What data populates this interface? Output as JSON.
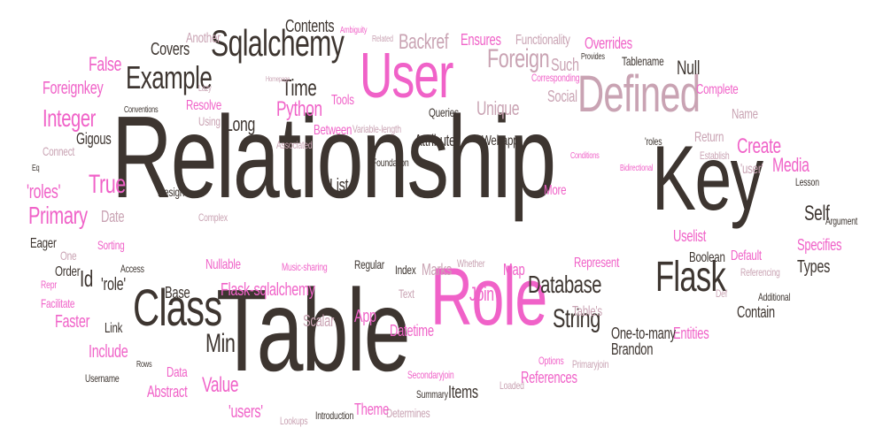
{
  "palette": {
    "dark": "#3d3530",
    "pink": "#f062c8",
    "mauve": "#c9a3b3",
    "light_pink": "#f4a8d8"
  },
  "words": [
    {
      "text": "Relationship",
      "color": "dark"
    },
    {
      "text": "Table",
      "color": "dark"
    },
    {
      "text": "Key",
      "color": "dark"
    },
    {
      "text": "Role",
      "color": "pink"
    },
    {
      "text": "User",
      "color": "pink"
    },
    {
      "text": "Defined",
      "color": "mauve"
    },
    {
      "text": "Class",
      "color": "dark"
    },
    {
      "text": "Flask",
      "color": "dark"
    },
    {
      "text": "Sqlalchemy",
      "color": "dark"
    },
    {
      "text": "Example",
      "color": "dark"
    },
    {
      "text": "Foreign",
      "color": "mauve"
    },
    {
      "text": "Database",
      "color": "dark"
    },
    {
      "text": "String",
      "color": "dark"
    },
    {
      "text": "Integer",
      "color": "pink"
    },
    {
      "text": "Primary",
      "color": "pink"
    },
    {
      "text": "True",
      "color": "pink"
    },
    {
      "text": "Time",
      "color": "dark"
    },
    {
      "text": "Python",
      "color": "pink"
    },
    {
      "text": "Unique",
      "color": "mauve"
    },
    {
      "text": "Backref",
      "color": "mauve"
    },
    {
      "text": "Contents",
      "color": "dark"
    },
    {
      "text": "Covers",
      "color": "dark"
    },
    {
      "text": "Create",
      "color": "pink"
    },
    {
      "text": "Media",
      "color": "pink"
    },
    {
      "text": "Self",
      "color": "dark"
    },
    {
      "text": "Flask-sqlalchemy",
      "color": "pink"
    },
    {
      "text": "Min",
      "color": "dark"
    },
    {
      "text": "Join",
      "color": "pink"
    },
    {
      "text": "Value",
      "color": "pink"
    },
    {
      "text": "Id",
      "color": "dark"
    },
    {
      "text": "'role'",
      "color": "dark"
    },
    {
      "text": "'roles'",
      "color": "pink"
    },
    {
      "text": "Foreignkey",
      "color": "pink"
    },
    {
      "text": "False",
      "color": "pink"
    },
    {
      "text": "Null",
      "color": "dark"
    },
    {
      "text": "Tablename",
      "color": "dark"
    },
    {
      "text": "Social",
      "color": "mauve"
    },
    {
      "text": "Such",
      "color": "mauve"
    },
    {
      "text": "Ensures",
      "color": "pink"
    },
    {
      "text": "Functionality",
      "color": "mauve"
    },
    {
      "text": "Overrides",
      "color": "pink"
    },
    {
      "text": "Provides",
      "color": "dark"
    },
    {
      "text": "Corresponding",
      "color": "pink"
    },
    {
      "text": "Complete",
      "color": "pink"
    },
    {
      "text": "Name",
      "color": "mauve"
    },
    {
      "text": "Return",
      "color": "mauve"
    },
    {
      "text": "Establish",
      "color": "mauve"
    },
    {
      "text": "'user'",
      "color": "mauve"
    },
    {
      "text": "Lesson",
      "color": "dark"
    },
    {
      "text": "Argument",
      "color": "dark"
    },
    {
      "text": "Specifies",
      "color": "pink"
    },
    {
      "text": "Types",
      "color": "dark"
    },
    {
      "text": "Default",
      "color": "pink"
    },
    {
      "text": "Boolean",
      "color": "dark"
    },
    {
      "text": "Uselist",
      "color": "pink"
    },
    {
      "text": "Referencing",
      "color": "mauve"
    },
    {
      "text": "Additional",
      "color": "dark"
    },
    {
      "text": "Contain",
      "color": "dark"
    },
    {
      "text": "Def",
      "color": "mauve"
    },
    {
      "text": "Represent",
      "color": "pink"
    },
    {
      "text": "Map",
      "color": "pink"
    },
    {
      "text": "Entities",
      "color": "pink"
    },
    {
      "text": "One-to-many",
      "color": "dark"
    },
    {
      "text": "Brandon",
      "color": "dark"
    },
    {
      "text": "Table's",
      "color": "mauve"
    },
    {
      "text": "References",
      "color": "pink"
    },
    {
      "text": "Options",
      "color": "pink"
    },
    {
      "text": "Primaryjoin",
      "color": "mauve"
    },
    {
      "text": "Loaded",
      "color": "mauve"
    },
    {
      "text": "Items",
      "color": "dark"
    },
    {
      "text": "Summary",
      "color": "dark"
    },
    {
      "text": "Secondaryjoin",
      "color": "pink"
    },
    {
      "text": "Determines",
      "color": "mauve"
    },
    {
      "text": "Theme",
      "color": "pink"
    },
    {
      "text": "Datetime",
      "color": "pink"
    },
    {
      "text": "Text",
      "color": "mauve"
    },
    {
      "text": "Whether",
      "color": "mauve"
    },
    {
      "text": "Marks",
      "color": "mauve"
    },
    {
      "text": "Index",
      "color": "dark"
    },
    {
      "text": "Regular",
      "color": "dark"
    },
    {
      "text": "App",
      "color": "pink"
    },
    {
      "text": "Scalar",
      "color": "mauve"
    },
    {
      "text": "Music-sharing",
      "color": "pink"
    },
    {
      "text": "Introduction",
      "color": "dark"
    },
    {
      "text": "Lookups",
      "color": "mauve"
    },
    {
      "text": "'users'",
      "color": "pink"
    },
    {
      "text": "Abstract",
      "color": "pink"
    },
    {
      "text": "Data",
      "color": "pink"
    },
    {
      "text": "Rows",
      "color": "dark"
    },
    {
      "text": "Include",
      "color": "pink"
    },
    {
      "text": "Link",
      "color": "dark"
    },
    {
      "text": "Faster",
      "color": "pink"
    },
    {
      "text": "Facilitate",
      "color": "pink"
    },
    {
      "text": "Repr",
      "color": "pink"
    },
    {
      "text": "Order",
      "color": "dark"
    },
    {
      "text": "One",
      "color": "mauve"
    },
    {
      "text": "Eager",
      "color": "dark"
    },
    {
      "text": "Sorting",
      "color": "pink"
    },
    {
      "text": "Access",
      "color": "dark"
    },
    {
      "text": "Nullable",
      "color": "pink"
    },
    {
      "text": "Base",
      "color": "dark"
    },
    {
      "text": "Username",
      "color": "dark"
    },
    {
      "text": "Complex",
      "color": "mauve"
    },
    {
      "text": "Design",
      "color": "dark"
    },
    {
      "text": "Date",
      "color": "mauve"
    },
    {
      "text": "Gigous",
      "color": "dark"
    },
    {
      "text": "Connect",
      "color": "mauve"
    },
    {
      "text": "Conventions",
      "color": "dark"
    },
    {
      "text": "Long",
      "color": "dark"
    },
    {
      "text": "Using",
      "color": "mauve"
    },
    {
      "text": "Resolve",
      "color": "pink"
    },
    {
      "text": "Lazy",
      "color": "mauve"
    },
    {
      "text": "Another",
      "color": "mauve"
    },
    {
      "text": "Tools",
      "color": "pink"
    },
    {
      "text": "Between",
      "color": "pink"
    },
    {
      "text": "Associated",
      "color": "mauve"
    },
    {
      "text": "Variable-length",
      "color": "mauve"
    },
    {
      "text": "Queries",
      "color": "dark"
    },
    {
      "text": "Attribute",
      "color": "dark"
    },
    {
      "text": "Foundation",
      "color": "dark"
    },
    {
      "text": "List",
      "color": "dark"
    },
    {
      "text": "Webapp",
      "color": "dark"
    },
    {
      "text": "Conditions",
      "color": "pink"
    },
    {
      "text": "More",
      "color": "pink"
    },
    {
      "text": "'roles",
      "color": "dark"
    },
    {
      "text": "Bidirectional",
      "color": "pink"
    },
    {
      "text": "Ambiguity",
      "color": "pink"
    },
    {
      "text": "Related",
      "color": "mauve"
    },
    {
      "text": "Eq",
      "color": "dark"
    },
    {
      "text": "Homepage",
      "color": "mauve"
    }
  ]
}
